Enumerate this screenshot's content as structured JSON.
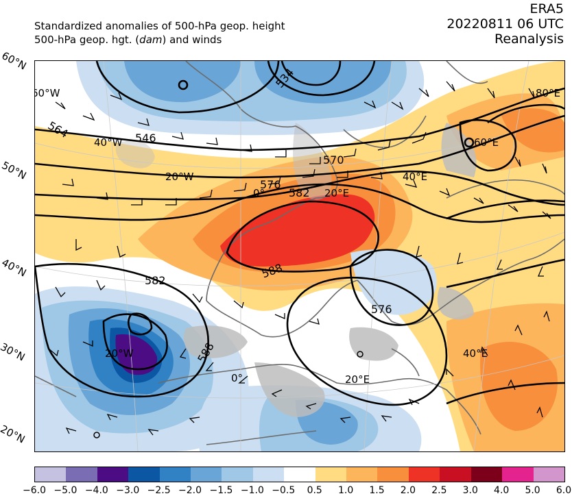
{
  "header": {
    "line1": "Standardized anomalies of 500-hPa geop. height",
    "line2_prefix": "500-hPa geop. hgt. (",
    "line2_unit": "dam",
    "line2_suffix": ") and winds",
    "dataset": "ERA5",
    "datetime": "20220811 06 UTC",
    "product": "Reanalysis"
  },
  "lat_labels": [
    "60°N",
    "50°N",
    "40°N",
    "30°N",
    "20°N"
  ],
  "lon_labels": [
    "60°W",
    "40°W",
    "20°W",
    "0°",
    "20°E",
    "40°E",
    "60°E",
    "80°E",
    "20°W",
    "0°",
    "20°E",
    "40°E"
  ],
  "contour_labels": [
    "534",
    "546",
    "564",
    "570",
    "576",
    "582",
    "588",
    "582",
    "576",
    "588"
  ],
  "colorbar": {
    "colors": [
      "#c4c2e0",
      "#7a6db3",
      "#4b0c84",
      "#0c57a3",
      "#3182c4",
      "#69a5d6",
      "#9fc8e6",
      "#ccdff2",
      "#ffffff",
      "#ffdb82",
      "#fdb55c",
      "#f88f3c",
      "#ee3225",
      "#c90f22",
      "#7c0019",
      "#e5238e",
      "#d296cd"
    ],
    "ticks": [
      "−6.0",
      "−5.0",
      "−4.0",
      "−3.0",
      "−2.5",
      "−2.0",
      "−1.5",
      "−1.0",
      "−0.5",
      "0.5",
      "1.0",
      "1.5",
      "2.0",
      "2.5",
      "3.0",
      "4.0",
      "5.0",
      "6.0"
    ]
  },
  "map": {
    "land_color": "#bdbdbd",
    "coast_color": "#6b6b6b",
    "contour_color": "#000000"
  }
}
